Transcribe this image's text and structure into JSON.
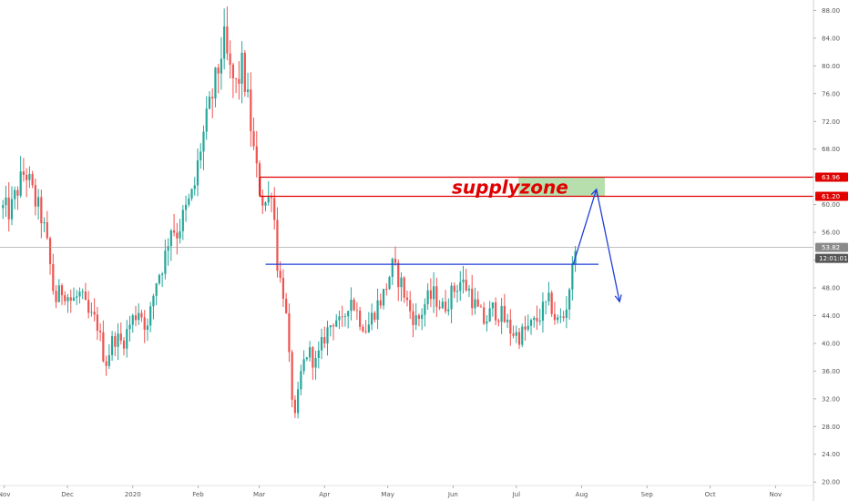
{
  "chart_data": {
    "type": "candlestick",
    "y_ticks": [
      20,
      24,
      28,
      32,
      36,
      40,
      44,
      48,
      52,
      56,
      60,
      64,
      68,
      72,
      76,
      80,
      84,
      88
    ],
    "y_tick_labels": [
      "20.00",
      "24.00",
      "28.00",
      "32.00",
      "36.00",
      "40.00",
      "44.00",
      "48.00",
      "52.00",
      "56.00",
      "60.00",
      "64.00",
      "68.00",
      "72.00",
      "76.00",
      "80.00",
      "84.00",
      "88.00"
    ],
    "ylim": [
      19.5,
      89.5
    ],
    "x_labels": [
      {
        "label": "Nov",
        "day": 0
      },
      {
        "label": "Dec",
        "day": 30
      },
      {
        "label": "2020",
        "day": 61
      },
      {
        "label": "Feb",
        "day": 92
      },
      {
        "label": "Mar",
        "day": 121
      },
      {
        "label": "Apr",
        "day": 152
      },
      {
        "label": "May",
        "day": 182
      },
      {
        "label": "Jun",
        "day": 213
      },
      {
        "label": "Jul",
        "day": 243
      },
      {
        "label": "Aug",
        "day": 274
      },
      {
        "label": "Sep",
        "day": 305
      },
      {
        "label": "Oct",
        "day": 335
      },
      {
        "label": "Nov",
        "day": 366
      }
    ],
    "xlim_days": [
      -2,
      384
    ],
    "price_path": [
      [
        -2,
        59.5
      ],
      [
        3,
        59
      ],
      [
        6,
        62
      ],
      [
        10,
        65
      ],
      [
        14,
        61
      ],
      [
        18,
        58
      ],
      [
        21,
        53
      ],
      [
        24,
        46
      ],
      [
        28,
        48
      ],
      [
        32,
        46
      ],
      [
        36,
        47
      ],
      [
        40,
        44
      ],
      [
        44,
        43
      ],
      [
        48,
        37
      ],
      [
        52,
        41
      ],
      [
        56,
        40
      ],
      [
        60,
        43
      ],
      [
        64,
        45
      ],
      [
        68,
        42
      ],
      [
        72,
        49
      ],
      [
        76,
        52
      ],
      [
        79,
        57
      ],
      [
        82,
        56
      ],
      [
        86,
        59
      ],
      [
        90,
        62
      ],
      [
        93,
        68
      ],
      [
        96,
        72
      ],
      [
        99,
        76
      ],
      [
        102,
        80
      ],
      [
        104,
        84
      ],
      [
        107,
        79
      ],
      [
        110,
        77
      ],
      [
        113,
        80
      ],
      [
        116,
        74
      ],
      [
        119,
        66
      ],
      [
        122,
        61
      ],
      [
        125,
        60
      ],
      [
        127,
        63
      ],
      [
        130,
        50
      ],
      [
        133,
        47
      ],
      [
        136,
        34
      ],
      [
        138,
        29
      ],
      [
        141,
        36
      ],
      [
        144,
        39
      ],
      [
        148,
        37
      ],
      [
        152,
        41
      ],
      [
        157,
        44
      ],
      [
        160,
        42
      ],
      [
        164,
        47
      ],
      [
        168,
        44
      ],
      [
        172,
        42
      ],
      [
        176,
        45
      ],
      [
        180,
        47
      ],
      [
        184,
        51
      ],
      [
        188,
        49
      ],
      [
        192,
        45
      ],
      [
        196,
        43
      ],
      [
        200,
        46
      ],
      [
        204,
        47
      ],
      [
        208,
        45
      ],
      [
        212,
        47
      ],
      [
        216,
        49
      ],
      [
        220,
        48
      ],
      [
        224,
        45
      ],
      [
        228,
        43
      ],
      [
        232,
        45
      ],
      [
        236,
        44
      ],
      [
        240,
        42
      ],
      [
        244,
        41
      ],
      [
        248,
        42
      ],
      [
        252,
        43
      ],
      [
        256,
        45
      ],
      [
        259,
        46
      ],
      [
        262,
        43
      ],
      [
        266,
        44
      ],
      [
        268,
        48
      ],
      [
        270,
        51
      ],
      [
        271,
        55
      ],
      [
        272,
        54
      ]
    ],
    "last_price": "53.82",
    "countdown": "12:01:01",
    "supply_zone": {
      "label": "supplyzone",
      "top": 63.96,
      "bottom": 61.2,
      "top_label": "63.96",
      "bottom_label": "61.20",
      "green_box": {
        "from_day": 244,
        "to_day": 285
      }
    },
    "support_line": {
      "price": 51.4,
      "from_day": 124,
      "to_day": 282
    },
    "projection": [
      [
        270,
        51.4
      ],
      [
        281,
        62.2
      ],
      [
        292,
        46
      ]
    ]
  },
  "colors": {
    "up": "#26a69a",
    "down": "#ef5350",
    "zone_line": "#e00000",
    "zone_badge": "#e00000",
    "projection": "#1f3fd6",
    "green_box": "#b7dfae",
    "price_badge": "#8a8a8a",
    "countdown_badge": "#555555",
    "axis_text": "#555555"
  }
}
